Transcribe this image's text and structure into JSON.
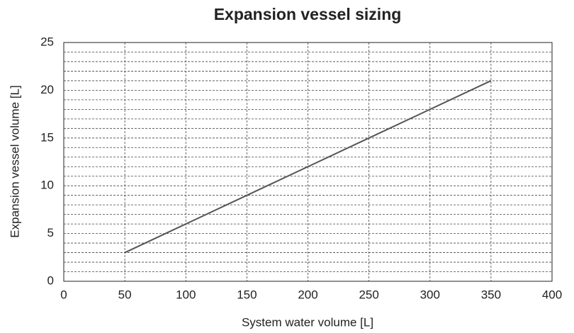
{
  "chart_data": {
    "type": "line",
    "title": "Expansion vessel sizing",
    "x_label": "System water volume [L]",
    "y_label": "Expansion vessel volume [L]",
    "x": [
      50,
      100,
      150,
      200,
      250,
      300,
      350
    ],
    "series": [
      {
        "color": "#555555",
        "values": [
          3,
          6,
          9,
          12,
          15,
          18,
          21
        ]
      }
    ],
    "xlim": [
      0,
      400
    ],
    "xticks": [
      0,
      50,
      100,
      150,
      200,
      250,
      300,
      350,
      400
    ],
    "ylim": [
      0,
      25
    ],
    "yticks": [
      0,
      5,
      10,
      15,
      20,
      25
    ],
    "yminorticks": [
      1,
      2,
      3,
      4,
      6,
      7,
      8,
      9,
      11,
      12,
      13,
      14,
      16,
      17,
      18,
      19,
      21,
      22,
      23,
      24
    ],
    "grid": true
  }
}
